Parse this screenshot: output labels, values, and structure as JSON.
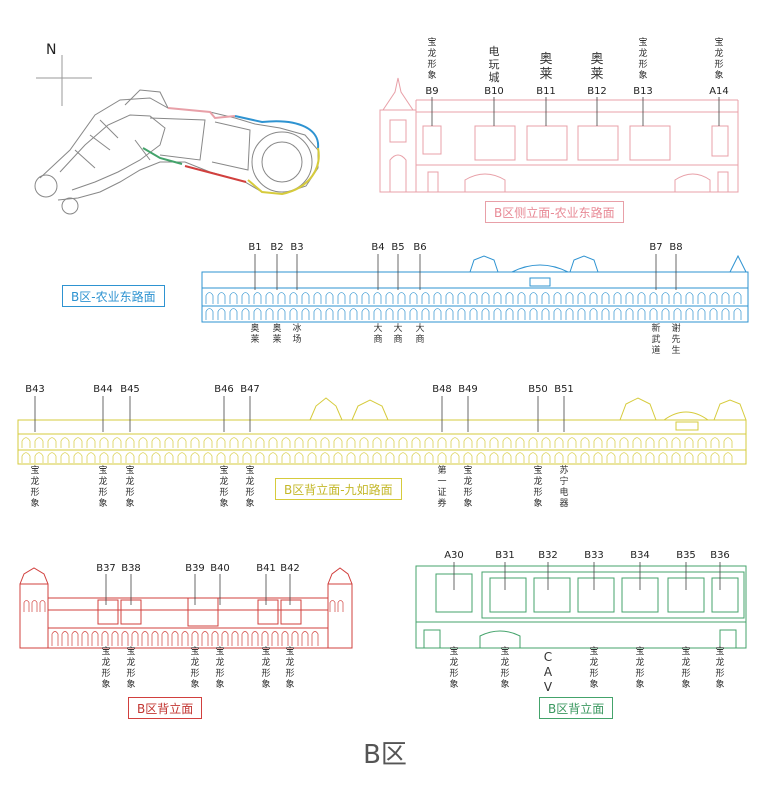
{
  "title": "B区",
  "compass": "N",
  "colors": {
    "pink": "#e8a0a8",
    "blue": "#2e93d1",
    "yellow": "#d6cb3c",
    "red": "#d1403e",
    "green": "#44a36b",
    "grey": "#8a8a8a"
  },
  "sections": {
    "pink": {
      "tag": "B区侧立面-农业东路面",
      "units": [
        {
          "code": "B9",
          "tenant": "宝龙形象"
        },
        {
          "code": "B10",
          "tenant": "电玩城"
        },
        {
          "code": "B11",
          "tenant": "奥莱"
        },
        {
          "code": "B12",
          "tenant": "奥莱"
        },
        {
          "code": "B13",
          "tenant": "宝龙形象"
        },
        {
          "code": "A14",
          "tenant": "宝龙形象"
        }
      ]
    },
    "blue": {
      "tag": "B区-农业东路面",
      "units": [
        {
          "code": "B1",
          "tenant": "奥莱"
        },
        {
          "code": "B2",
          "tenant": "奥莱"
        },
        {
          "code": "B3",
          "tenant": "冰场"
        },
        {
          "code": "B4",
          "tenant": "大商"
        },
        {
          "code": "B5",
          "tenant": "大商"
        },
        {
          "code": "B6",
          "tenant": "大商"
        },
        {
          "code": "B7",
          "tenant": "新武道"
        },
        {
          "code": "B8",
          "tenant": "谢先生"
        }
      ]
    },
    "yellow": {
      "tag": "B区背立面-九如路面",
      "units": [
        {
          "code": "B43",
          "tenant": "宝龙形象"
        },
        {
          "code": "B44",
          "tenant": "宝龙形象"
        },
        {
          "code": "B45",
          "tenant": "宝龙形象"
        },
        {
          "code": "B46",
          "tenant": "宝龙形象"
        },
        {
          "code": "B47",
          "tenant": "宝龙形象"
        },
        {
          "code": "B48",
          "tenant": "第一证券"
        },
        {
          "code": "B49",
          "tenant": "宝龙形象"
        },
        {
          "code": "B50",
          "tenant": "宝龙形象"
        },
        {
          "code": "B51",
          "tenant": "苏宁电器"
        }
      ]
    },
    "red": {
      "tag": "B区背立面",
      "units": [
        {
          "code": "B37",
          "tenant": "宝龙形象"
        },
        {
          "code": "B38",
          "tenant": "宝龙形象"
        },
        {
          "code": "B39",
          "tenant": "宝龙形象"
        },
        {
          "code": "B40",
          "tenant": "宝龙形象"
        },
        {
          "code": "B41",
          "tenant": "宝龙形象"
        },
        {
          "code": "B42",
          "tenant": "宝龙形象"
        }
      ]
    },
    "green": {
      "tag": "B区背立面",
      "units": [
        {
          "code": "A30",
          "tenant": "宝龙形象"
        },
        {
          "code": "B31",
          "tenant": "宝龙形象"
        },
        {
          "code": "B32",
          "tenant": "CAV"
        },
        {
          "code": "B33",
          "tenant": "宝龙形象"
        },
        {
          "code": "B34",
          "tenant": "宝龙形象"
        },
        {
          "code": "B35",
          "tenant": "宝龙形象"
        },
        {
          "code": "B36",
          "tenant": "宝龙形象"
        }
      ]
    }
  }
}
